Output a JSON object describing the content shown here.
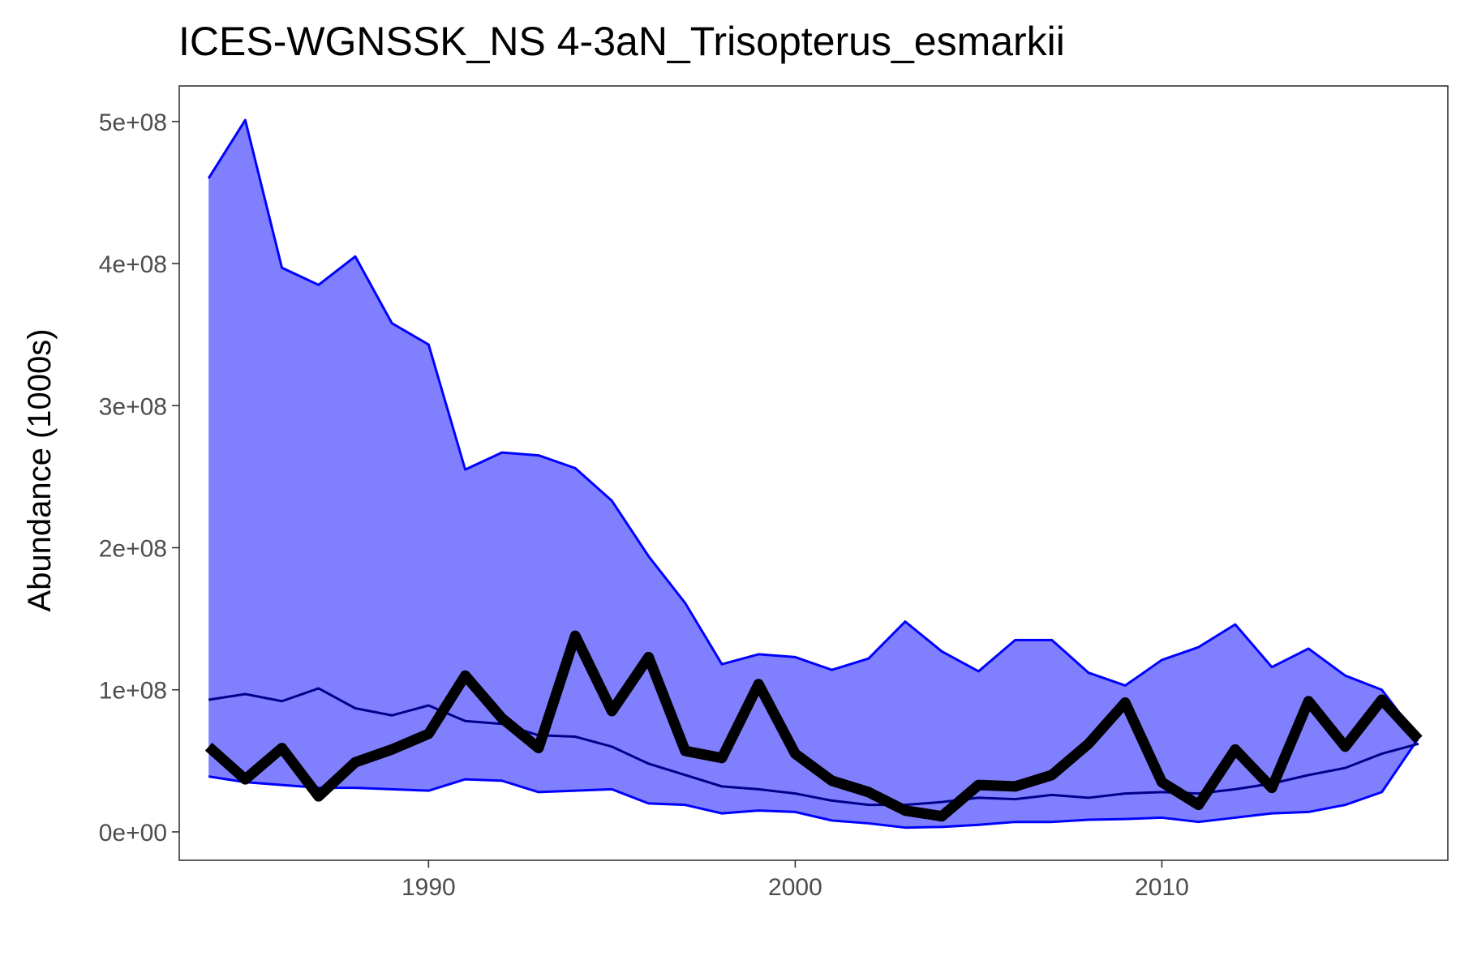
{
  "chart_data": {
    "type": "area",
    "title": "ICES-WGNSSK_NS 4-3aN_Trisopterus_esmarkii",
    "xlabel": "",
    "ylabel": "Abundance (1000s)",
    "xlim": [
      1983.2,
      2017.8
    ],
    "ylim": [
      -20000000,
      525000000
    ],
    "grid": false,
    "legend": "none",
    "x_ticks": [
      {
        "value": 1990,
        "label": "1990"
      },
      {
        "value": 2000,
        "label": "2000"
      },
      {
        "value": 2010,
        "label": "2010"
      }
    ],
    "y_ticks": [
      {
        "value": 0,
        "label": "0e+00"
      },
      {
        "value": 100000000,
        "label": "1e+08"
      },
      {
        "value": 200000000,
        "label": "2e+08"
      },
      {
        "value": 300000000,
        "label": "3e+08"
      },
      {
        "value": 400000000,
        "label": "4e+08"
      },
      {
        "value": 500000000,
        "label": "5e+08"
      }
    ],
    "x": [
      1984,
      1985,
      1986,
      1987,
      1988,
      1989,
      1990,
      1991,
      1992,
      1993,
      1994,
      1995,
      1996,
      1997,
      1998,
      1999,
      2000,
      2001,
      2002,
      2003,
      2004,
      2005,
      2006,
      2007,
      2008,
      2009,
      2010,
      2011,
      2012,
      2013,
      2014,
      2015,
      2016,
      2017
    ],
    "band": {
      "upper": [
        460000000,
        501000000,
        397000000,
        385000000,
        405000000,
        358000000,
        343000000,
        255000000,
        267000000,
        265000000,
        256000000,
        233000000,
        194000000,
        161000000,
        118000000,
        125000000,
        123000000,
        114000000,
        122000000,
        148000000,
        127000000,
        113000000,
        135000000,
        135000000,
        112000000,
        103000000,
        121000000,
        130000000,
        146000000,
        116000000,
        129000000,
        110000000,
        100000000,
        66000000
      ],
      "lower": [
        39000000,
        35000000,
        33000000,
        31000000,
        31000000,
        30000000,
        29000000,
        37000000,
        36000000,
        28000000,
        29000000,
        30000000,
        20000000,
        19000000,
        13000000,
        15000000,
        14000000,
        8000000,
        6000000,
        3000000,
        3500000,
        5000000,
        7000000,
        7000000,
        8500000,
        9000000,
        10000000,
        7000000,
        10000000,
        13000000,
        14000000,
        19000000,
        28000000,
        66000000
      ]
    },
    "series": [
      {
        "role": "median",
        "values": [
          93000000,
          97000000,
          92000000,
          101000000,
          87000000,
          82000000,
          89000000,
          78000000,
          76000000,
          68000000,
          67000000,
          60000000,
          48000000,
          40000000,
          32000000,
          30000000,
          27000000,
          22000000,
          19000000,
          19000000,
          21000000,
          24000000,
          23000000,
          26000000,
          24000000,
          27000000,
          28000000,
          27000000,
          30000000,
          34000000,
          40000000,
          45000000,
          55000000,
          62000000
        ]
      },
      {
        "role": "observed",
        "values": [
          60000000,
          37000000,
          59000000,
          25000000,
          49000000,
          58000000,
          69000000,
          110000000,
          80000000,
          59000000,
          138000000,
          85000000,
          123000000,
          57000000,
          52000000,
          104000000,
          55000000,
          36000000,
          28000000,
          15000000,
          11000000,
          33000000,
          32000000,
          40000000,
          62000000,
          91000000,
          35000000,
          19000000,
          58000000,
          31000000,
          92000000,
          60000000,
          93000000,
          65000000
        ]
      }
    ],
    "colors": {
      "band_fill": "#8080ff",
      "band_stroke": "#0000ff",
      "median_line": "#00008b",
      "observed_line": "#000000",
      "axis_text": "#4d4d4d",
      "panel_border": "#333333"
    }
  }
}
